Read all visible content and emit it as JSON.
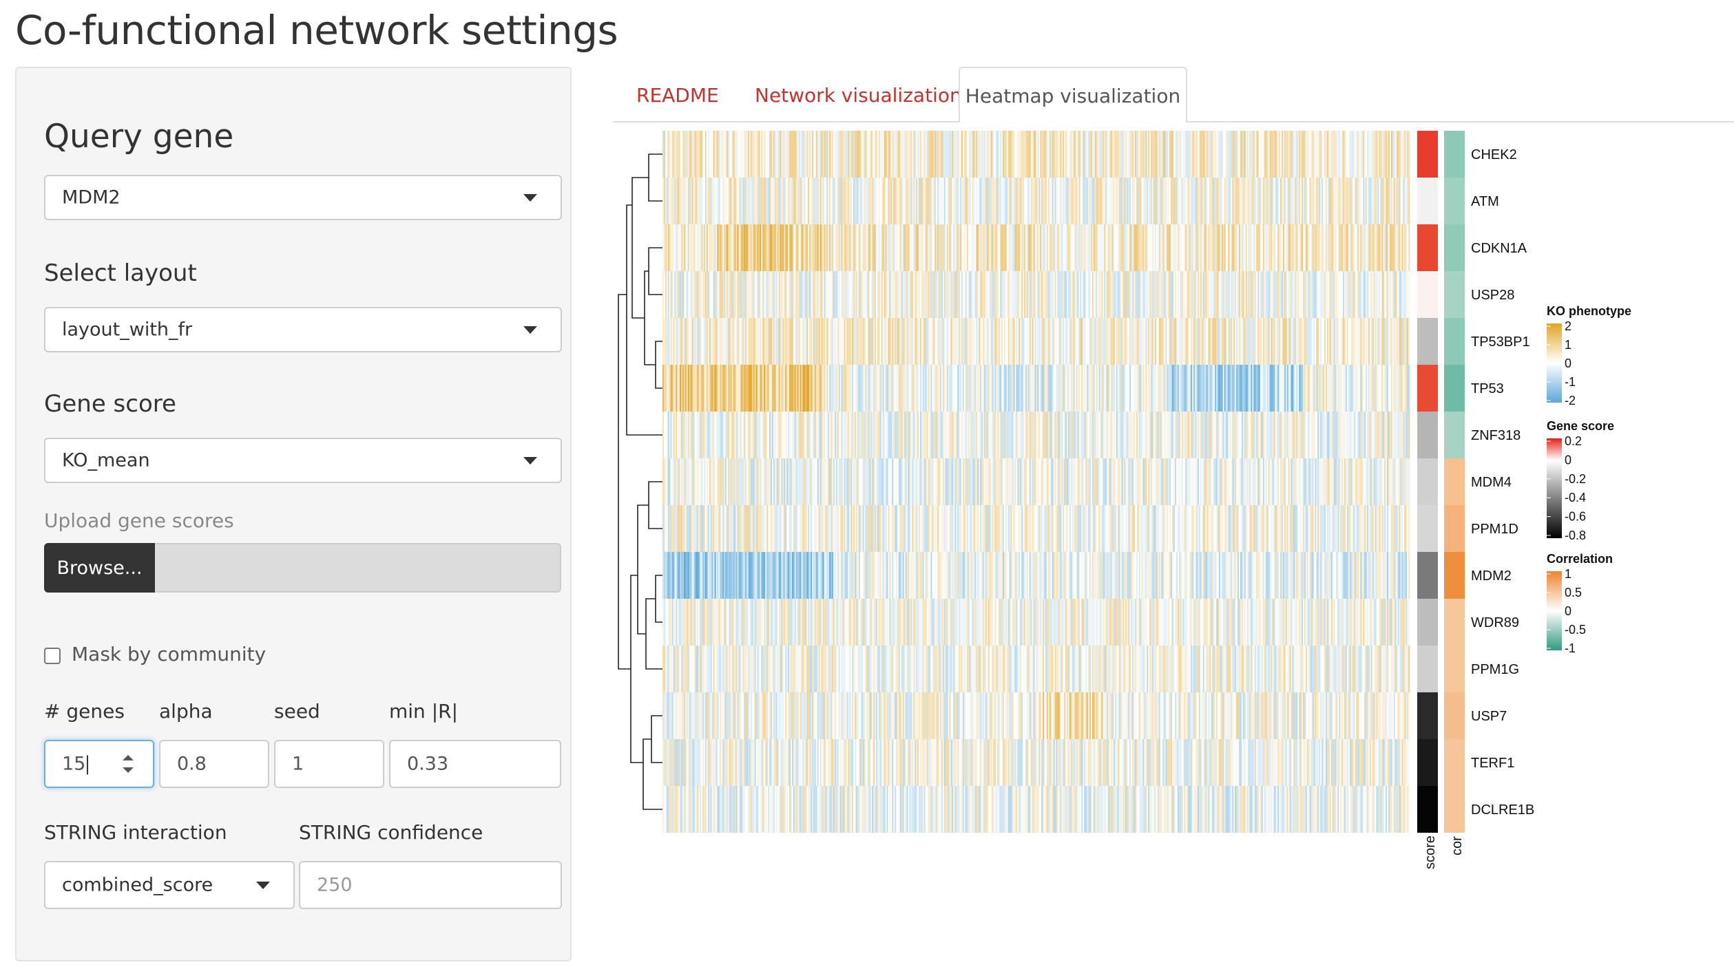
{
  "page": {
    "title": "Co-functional network settings"
  },
  "sidebar": {
    "query_gene": {
      "label": "Query gene",
      "value": "MDM2"
    },
    "layout": {
      "label": "Select layout",
      "value": "layout_with_fr"
    },
    "gene_score": {
      "label": "Gene score",
      "value": "KO_mean"
    },
    "upload": {
      "label": "Upload gene scores",
      "button_label": "Browse..."
    },
    "mask": {
      "label": "Mask by community",
      "checked": false
    },
    "params": {
      "genes_label": "# genes",
      "genes_value": "15",
      "alpha_label": "alpha",
      "alpha_value": "0.8",
      "seed_label": "seed",
      "seed_value": "1",
      "minr_label": "min |R|",
      "minr_value": "0.33"
    },
    "string": {
      "interaction_label": "STRING interaction",
      "interaction_value": "combined_score",
      "confidence_label": "STRING confidence",
      "confidence_placeholder": "250"
    }
  },
  "tabs": [
    {
      "label": "README",
      "active": false
    },
    {
      "label": "Network visualization",
      "active": false
    },
    {
      "label": "Heatmap visualization",
      "active": true
    }
  ],
  "heatmap": {
    "genes": [
      "CHEK2",
      "ATM",
      "CDKN1A",
      "USP28",
      "TP53BP1",
      "TP53",
      "ZNF318",
      "MDM4",
      "PPM1D",
      "MDM2",
      "WDR89",
      "PPM1G",
      "USP7",
      "TERF1",
      "DCLRE1B"
    ],
    "score_colors": [
      "#e83c2c",
      "#f1f1f1",
      "#e8482f",
      "#fbf2f0",
      "#bdbdbd",
      "#e84a32",
      "#b5b5b5",
      "#d0d0d0",
      "#d6d6d6",
      "#7a7a7a",
      "#bdbdbd",
      "#cfcfcf",
      "#2a2a2a",
      "#1a1a1a",
      "#050505"
    ],
    "cor_colors": [
      "#8cc9b6",
      "#9fd1c0",
      "#90cbb8",
      "#a6d4c4",
      "#8cc9b6",
      "#6fbba5",
      "#a6d4c4",
      "#f7c08f",
      "#f5b27b",
      "#ee8f3e",
      "#f6c79b",
      "#f6c79b",
      "#f4bd8c",
      "#f7c59a",
      "#f7c59a"
    ],
    "column_labels": {
      "score": "score",
      "cor": "cor"
    },
    "legends": {
      "ko": {
        "title": "KO phenotype",
        "ticks": [
          "2",
          "1",
          "0",
          "-1",
          "-2"
        ],
        "colors": [
          "#e0a526",
          "#ffffff",
          "#5aa8d6"
        ]
      },
      "gene_score": {
        "title": "Gene score",
        "ticks": [
          "0.2",
          "0",
          "-0.2",
          "-0.4",
          "-0.6",
          "-0.8"
        ],
        "colors": [
          "#e4211c",
          "#ffffff",
          "#000000"
        ]
      },
      "correlation": {
        "title": "Correlation",
        "ticks": [
          "1",
          "0.5",
          "0",
          "-0.5",
          "-1"
        ],
        "colors": [
          "#ed8430",
          "#ffffff",
          "#2f9a7e"
        ]
      }
    }
  }
}
